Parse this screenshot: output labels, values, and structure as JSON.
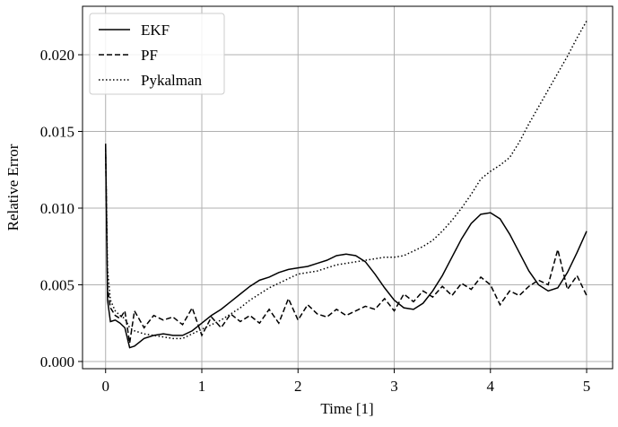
{
  "chart_data": {
    "type": "line",
    "x_label": "Time [1]",
    "y_label": "Relative Error",
    "x": [
      0,
      0.02,
      0.05,
      0.1,
      0.15,
      0.2,
      0.25,
      0.3,
      0.4,
      0.5,
      0.6,
      0.7,
      0.8,
      0.9,
      1.0,
      1.1,
      1.2,
      1.3,
      1.4,
      1.5,
      1.6,
      1.7,
      1.8,
      1.9,
      2.0,
      2.1,
      2.2,
      2.3,
      2.4,
      2.5,
      2.6,
      2.7,
      2.8,
      2.9,
      3.0,
      3.1,
      3.2,
      3.3,
      3.4,
      3.5,
      3.6,
      3.7,
      3.8,
      3.9,
      4.0,
      4.1,
      4.2,
      4.3,
      4.4,
      4.5,
      4.6,
      4.7,
      4.8,
      4.9,
      5.0
    ],
    "series": [
      {
        "name": "EKF",
        "color": "#000000",
        "dash": "solid",
        "values": [
          0.0142,
          0.004,
          0.0026,
          0.0027,
          0.0025,
          0.0022,
          0.0009,
          0.001,
          0.0015,
          0.0017,
          0.0018,
          0.0017,
          0.0017,
          0.002,
          0.0025,
          0.003,
          0.0034,
          0.0039,
          0.0044,
          0.0049,
          0.0053,
          0.0055,
          0.0058,
          0.006,
          0.0061,
          0.0062,
          0.0064,
          0.0066,
          0.0069,
          0.007,
          0.0069,
          0.0065,
          0.0057,
          0.0048,
          0.004,
          0.0035,
          0.0034,
          0.0038,
          0.0046,
          0.0056,
          0.0068,
          0.008,
          0.009,
          0.0096,
          0.0097,
          0.0093,
          0.0083,
          0.0071,
          0.0059,
          0.005,
          0.0046,
          0.0048,
          0.0058,
          0.0071,
          0.0085
        ]
      },
      {
        "name": "PF",
        "color": "#000000",
        "dash": "dashed",
        "values": [
          0.014,
          0.0048,
          0.0035,
          0.003,
          0.0028,
          0.0033,
          0.0012,
          0.0033,
          0.0022,
          0.003,
          0.0027,
          0.0029,
          0.0024,
          0.0035,
          0.0017,
          0.0029,
          0.0022,
          0.0031,
          0.0026,
          0.003,
          0.0025,
          0.0034,
          0.0025,
          0.0041,
          0.0027,
          0.0037,
          0.0031,
          0.0029,
          0.0034,
          0.003,
          0.0033,
          0.0036,
          0.0034,
          0.0041,
          0.0033,
          0.0044,
          0.0039,
          0.0046,
          0.0042,
          0.0049,
          0.0043,
          0.0051,
          0.0047,
          0.0055,
          0.005,
          0.0037,
          0.0046,
          0.0043,
          0.0049,
          0.0053,
          0.005,
          0.0073,
          0.0047,
          0.0056,
          0.0043
        ]
      },
      {
        "name": "Pykalman",
        "color": "#000000",
        "dash": "dotted",
        "values": [
          0.0138,
          0.006,
          0.004,
          0.0033,
          0.003,
          0.0028,
          0.0022,
          0.002,
          0.0018,
          0.0017,
          0.0016,
          0.0015,
          0.0015,
          0.0018,
          0.0021,
          0.0024,
          0.0027,
          0.0031,
          0.0035,
          0.004,
          0.0044,
          0.0048,
          0.0051,
          0.0054,
          0.0057,
          0.0058,
          0.0059,
          0.0061,
          0.0063,
          0.0064,
          0.0065,
          0.0066,
          0.0067,
          0.0068,
          0.0068,
          0.0069,
          0.0072,
          0.0075,
          0.0079,
          0.0085,
          0.0092,
          0.01,
          0.0109,
          0.0119,
          0.0124,
          0.0128,
          0.0133,
          0.0143,
          0.0155,
          0.0166,
          0.0177,
          0.0188,
          0.0199,
          0.0211,
          0.0222
        ]
      }
    ],
    "xlim": [
      -0.24,
      5.27
    ],
    "ylim": [
      -0.00047,
      0.02316
    ],
    "xticks": [
      0,
      1,
      2,
      3,
      4,
      5
    ],
    "yticks": [
      {
        "value": 0,
        "label": "0.000"
      },
      {
        "value": 0.005,
        "label": "0.005"
      },
      {
        "value": 0.01,
        "label": "0.010"
      },
      {
        "value": 0.015,
        "label": "0.015"
      },
      {
        "value": 0.02,
        "label": "0.020"
      }
    ],
    "grid": true,
    "legend": "upper left"
  }
}
